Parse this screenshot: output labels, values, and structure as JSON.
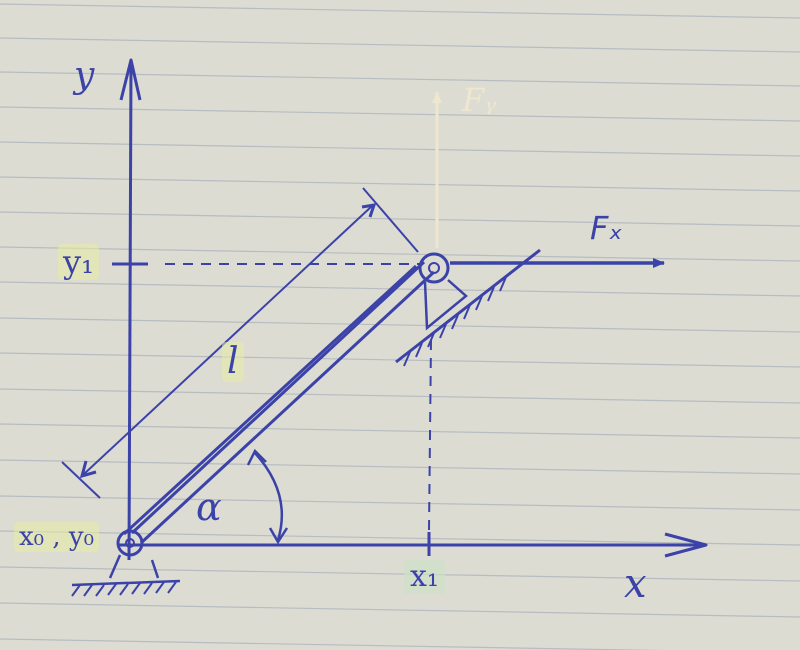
{
  "colors": {
    "paper": "#dcdcd2",
    "rule_line": "#9aa2b4",
    "ink": "#3b42a8",
    "faded_ink": "#efe6cf",
    "label_highlight": "#e8eca0"
  },
  "labels": {
    "y_axis": "y",
    "x_axis": "x",
    "y1": "y₁",
    "x1": "x₁",
    "length": "l",
    "angle": "α",
    "force_x": "Fₓ",
    "force_y": "Fᵧ",
    "origin": "x₀ , y₀"
  }
}
